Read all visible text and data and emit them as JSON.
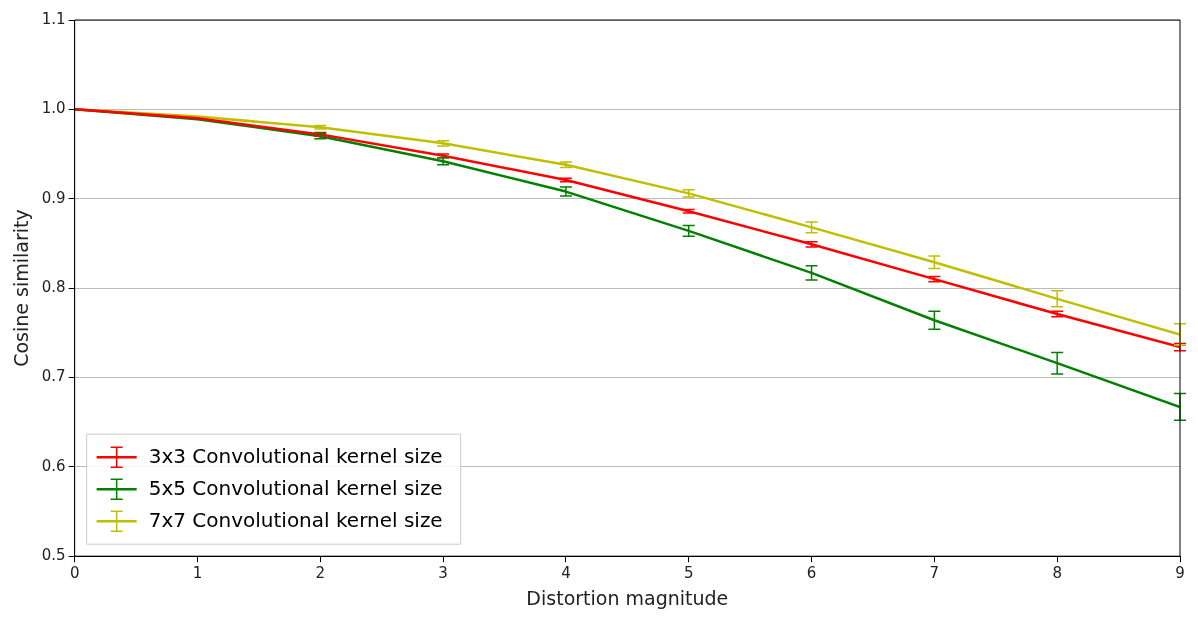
{
  "chart_data": {
    "type": "line",
    "xlabel": "Distortion magnitude",
    "ylabel": "Cosine similarity",
    "x": [
      0,
      1,
      2,
      3,
      4,
      5,
      6,
      7,
      8,
      9
    ],
    "xlim": [
      0,
      9
    ],
    "xticks": [
      0,
      1,
      2,
      3,
      4,
      5,
      6,
      7,
      8,
      9
    ],
    "ylim": [
      0.5,
      1.1
    ],
    "yticks": [
      0.5,
      0.6,
      0.7,
      0.8,
      0.9,
      {
        "value": 1.0,
        "label": "1.0"
      },
      1.1
    ],
    "grid": "y",
    "legend": "bottom left",
    "marker": "none",
    "line_style": "solid",
    "series": [
      {
        "name": "3x3 Convolutional kernel size",
        "color": "#ff0000",
        "values": [
          1.0,
          0.99,
          0.972,
          0.948,
          0.921,
          0.886,
          0.849,
          0.81,
          0.771,
          0.734
        ],
        "errors": [
          null,
          null,
          0.002,
          0.002,
          0.002,
          0.002,
          0.003,
          0.003,
          0.003,
          0.004
        ]
      },
      {
        "name": "5x5 Convolutional kernel size",
        "color": "#008000",
        "values": [
          1.0,
          0.989,
          0.97,
          0.942,
          0.908,
          0.864,
          0.817,
          0.764,
          0.716,
          0.667
        ],
        "errors": [
          null,
          null,
          0.003,
          0.004,
          0.005,
          0.006,
          0.008,
          0.01,
          0.012,
          0.015
        ]
      },
      {
        "name": "7x7 Convolutional kernel size",
        "color": "#bfbf00",
        "values": [
          1.0,
          0.992,
          0.98,
          0.962,
          0.938,
          0.906,
          0.868,
          0.829,
          0.788,
          0.748
        ],
        "errors": [
          null,
          null,
          0.002,
          0.003,
          0.003,
          0.004,
          0.006,
          0.007,
          0.009,
          0.012
        ]
      }
    ]
  }
}
